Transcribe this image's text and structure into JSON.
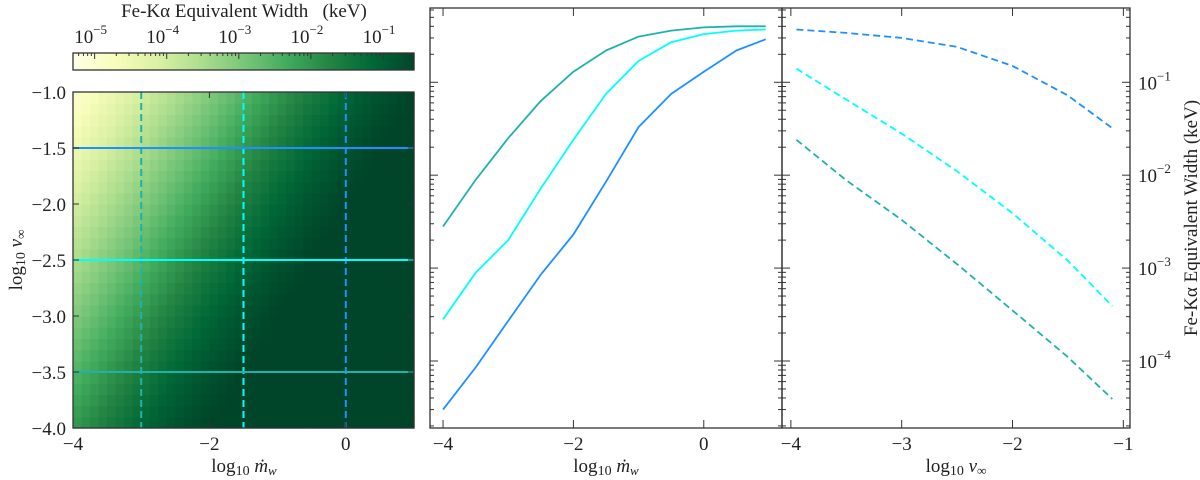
{
  "chart_data": [
    {
      "type": "heatmap",
      "colormap": "YlGn",
      "x": [
        -4,
        -3.5,
        -3,
        -2.5,
        -2,
        -1.5,
        -1,
        -0.5,
        0,
        0.5,
        1
      ],
      "y": [
        -4,
        -3.5,
        -3,
        -2.5,
        -2,
        -1.5,
        -1
      ],
      "z_log10_keV": [
        [
          -2.06,
          -1.58,
          -1.14,
          -0.78,
          -0.56,
          -0.46,
          -0.42,
          -0.41,
          -0.4,
          -0.4,
          -0.4
        ],
        [
          -2.56,
          -2.06,
          -1.58,
          -1.14,
          -0.78,
          -0.56,
          -0.46,
          -0.42,
          -0.41,
          -0.4,
          -0.4
        ],
        [
          -3.06,
          -2.56,
          -2.06,
          -1.58,
          -1.14,
          -0.78,
          -0.56,
          -0.46,
          -0.42,
          -0.41,
          -0.4
        ],
        [
          -3.56,
          -3.06,
          -2.56,
          -2.06,
          -1.58,
          -1.14,
          -0.78,
          -0.56,
          -0.46,
          -0.42,
          -0.41
        ],
        [
          -4.06,
          -3.56,
          -3.06,
          -2.56,
          -2.06,
          -1.58,
          -1.14,
          -0.78,
          -0.56,
          -0.46,
          -0.42
        ],
        [
          -4.56,
          -4.06,
          -3.56,
          -3.06,
          -2.56,
          -2.06,
          -1.58,
          -1.14,
          -0.78,
          -0.56,
          -0.46
        ],
        [
          -5.06,
          -4.56,
          -4.06,
          -3.56,
          -3.06,
          -2.56,
          -2.06,
          -1.58,
          -1.14,
          -0.78,
          -0.56
        ]
      ],
      "xlim": [
        -4,
        1
      ],
      "ylim": [
        -4,
        -1
      ],
      "xticks": [
        "−4",
        "−2",
        "0"
      ],
      "xtick_values": [
        -4,
        -2,
        0
      ],
      "yticks": [
        "−4.0",
        "−3.5",
        "−3.0",
        "−2.5",
        "−2.0",
        "−1.5",
        "−1.0"
      ],
      "ytick_values": [
        -4,
        -3.5,
        -3,
        -2.5,
        -2,
        -1.5,
        -1
      ],
      "xlabel": {
        "prefix": "log",
        "sub": "10",
        "var": "ṁ",
        "var_sub": "w"
      },
      "ylabel": {
        "prefix": "log",
        "sub": "10",
        "var": "v",
        "var_sub": "∞"
      },
      "colorbar": {
        "label": "Fe-Kα Equivalent Width   (keV)",
        "scale": "log",
        "range_log10": [
          -5.3,
          -0.57
        ],
        "ticks": [
          {
            "base": "10",
            "exp": "−5",
            "v": -5
          },
          {
            "base": "10",
            "exp": "−4",
            "v": -4
          },
          {
            "base": "10",
            "exp": "−3",
            "v": -3
          },
          {
            "base": "10",
            "exp": "−2",
            "v": -2
          },
          {
            "base": "10",
            "exp": "−1",
            "v": -1
          }
        ]
      },
      "overlay_lines": [
        {
          "orientation": "vertical",
          "at": -3,
          "color": "#20b2aa",
          "style": "dashed"
        },
        {
          "orientation": "vertical",
          "at": -1.5,
          "color": "#00ffff",
          "style": "dashed"
        },
        {
          "orientation": "vertical",
          "at": 0,
          "color": "#1e90ff",
          "style": "dashed"
        },
        {
          "orientation": "horizontal",
          "at": -1.5,
          "color": "#1e90ff",
          "style": "solid"
        },
        {
          "orientation": "horizontal",
          "at": -2.5,
          "color": "#00ffff",
          "style": "solid"
        },
        {
          "orientation": "horizontal",
          "at": -3.5,
          "color": "#20b2aa",
          "style": "solid"
        }
      ]
    },
    {
      "type": "line",
      "xlim": [
        -4.2,
        1.2
      ],
      "yscale": "log",
      "ylim": [
        1.9e-05,
        0.63
      ],
      "xticks": [
        "−4",
        "−2",
        "0"
      ],
      "xtick_values": [
        -4,
        -2,
        0
      ],
      "xlabel": {
        "prefix": "log",
        "sub": "10",
        "var": "ṁ",
        "var_sub": "w"
      },
      "series": [
        {
          "color": "#20b2aa",
          "style": "solid",
          "x": [
            -4,
            -3.5,
            -3,
            -2.5,
            -2,
            -1.5,
            -1,
            -0.5,
            0,
            0.5,
            0.95
          ],
          "y": [
            0.0028,
            0.0089,
            0.025,
            0.063,
            0.13,
            0.22,
            0.31,
            0.36,
            0.39,
            0.4,
            0.4
          ]
        },
        {
          "color": "#00ffff",
          "style": "solid",
          "x": [
            -4,
            -3.5,
            -3,
            -2.5,
            -2,
            -1.5,
            -1,
            -0.5,
            0,
            0.5,
            0.95
          ],
          "y": [
            0.00028,
            0.00089,
            0.002,
            0.0072,
            0.024,
            0.075,
            0.17,
            0.27,
            0.33,
            0.36,
            0.37
          ]
        },
        {
          "color": "#1e90ff",
          "style": "solid",
          "x": [
            -4,
            -3.5,
            -3,
            -2.5,
            -2,
            -1.5,
            -1,
            -0.5,
            0,
            0.5,
            0.95
          ],
          "y": [
            3e-05,
            8.5e-05,
            0.00027,
            0.00085,
            0.0023,
            0.0085,
            0.033,
            0.075,
            0.13,
            0.22,
            0.29
          ]
        }
      ]
    },
    {
      "type": "line",
      "xlim": [
        -4.08,
        -0.94
      ],
      "yscale": "log",
      "ylim": [
        1.9e-05,
        0.63
      ],
      "xticks": [
        "−4",
        "−3",
        "−2",
        "−1"
      ],
      "xtick_values": [
        -4,
        -3,
        -2,
        -1
      ],
      "yticks": [
        {
          "base": "10",
          "exp": "−1",
          "v": -1
        },
        {
          "base": "10",
          "exp": "−2",
          "v": -2
        },
        {
          "base": "10",
          "exp": "−3",
          "v": -3
        },
        {
          "base": "10",
          "exp": "−4",
          "v": -4
        }
      ],
      "xlabel": {
        "prefix": "log",
        "sub": "10",
        "var": "v",
        "var_sub": "∞"
      },
      "ylabel": "Fe-Kα Equivalent Width (keV)",
      "series": [
        {
          "color": "#1e90ff",
          "style": "dashed",
          "x": [
            -3.95,
            -3.5,
            -3,
            -2.5,
            -2,
            -1.5,
            -1.1
          ],
          "y": [
            0.37,
            0.34,
            0.3,
            0.24,
            0.15,
            0.072,
            0.032
          ]
        },
        {
          "color": "#00ffff",
          "style": "dashed",
          "x": [
            -3.95,
            -3.5,
            -3,
            -2.5,
            -2,
            -1.5,
            -1.1
          ],
          "y": [
            0.14,
            0.065,
            0.028,
            0.011,
            0.0039,
            0.0012,
            0.00039
          ]
        },
        {
          "color": "#20b2aa",
          "style": "dashed",
          "x": [
            -3.95,
            -3.5,
            -3,
            -2.5,
            -2,
            -1.5,
            -1.1
          ],
          "y": [
            0.024,
            0.0088,
            0.0033,
            0.0011,
            0.00035,
            0.00011,
            3.9e-05
          ]
        }
      ]
    }
  ]
}
